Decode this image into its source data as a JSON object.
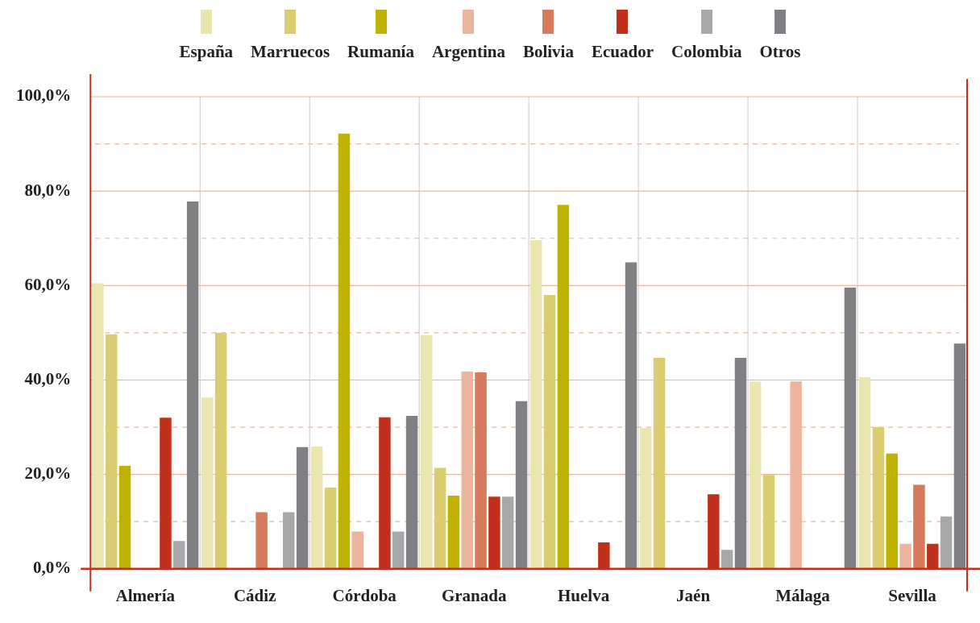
{
  "chart_data": {
    "type": "bar",
    "categories": [
      "Almería",
      "Cádiz",
      "Córdoba",
      "Granada",
      "Huelva",
      "Jaén",
      "Málaga",
      "Sevilla"
    ],
    "series": [
      {
        "name": "España",
        "color": "#ebe5b0",
        "values": [
          60.5,
          36.3,
          25.9,
          49.5,
          69.6,
          29.8,
          39.7,
          40.6
        ]
      },
      {
        "name": "Marruecos",
        "color": "#d9cd6f",
        "values": [
          49.7,
          50,
          17.2,
          21.4,
          58,
          44.7,
          19.9,
          30
        ]
      },
      {
        "name": "Rumanía",
        "color": "#bfb300",
        "values": [
          21.8,
          null,
          92.2,
          15.5,
          77.1,
          null,
          null,
          24.4
        ]
      },
      {
        "name": "Argentina",
        "color": "#eab59c",
        "values": [
          null,
          null,
          7.9,
          41.8,
          null,
          null,
          39.7,
          5.3
        ]
      },
      {
        "name": "Bolivia",
        "color": "#d7795b",
        "values": [
          null,
          12,
          null,
          41.6,
          null,
          null,
          null,
          17.8
        ]
      },
      {
        "name": "Ecuador",
        "color": "#c0301c",
        "values": [
          32,
          null,
          32.1,
          15.3,
          5.6,
          15.8,
          null,
          5.3
        ]
      },
      {
        "name": "Colombia",
        "color": "#a8a8ab",
        "values": [
          5.9,
          12,
          7.9,
          15.3,
          null,
          4,
          null,
          11.1
        ]
      },
      {
        "name": "Otros",
        "color": "#808084",
        "values": [
          77.8,
          25.8,
          32.4,
          35.5,
          64.9,
          44.7,
          59.6,
          47.7
        ]
      }
    ],
    "ylim": [
      0,
      100
    ],
    "yticks": [
      {
        "value": 0,
        "label": "0,0%"
      },
      {
        "value": 10,
        "label": null
      },
      {
        "value": 20,
        "label": "20,0%"
      },
      {
        "value": 30,
        "label": null
      },
      {
        "value": 40,
        "label": "40,0%"
      },
      {
        "value": 50,
        "label": null
      },
      {
        "value": 60,
        "label": "60,0%"
      },
      {
        "value": 70,
        "label": null
      },
      {
        "value": 80,
        "label": "80,0%"
      },
      {
        "value": 90,
        "label": null
      },
      {
        "value": 100,
        "label": "100,0%"
      }
    ],
    "grid": true,
    "legend": "top"
  }
}
